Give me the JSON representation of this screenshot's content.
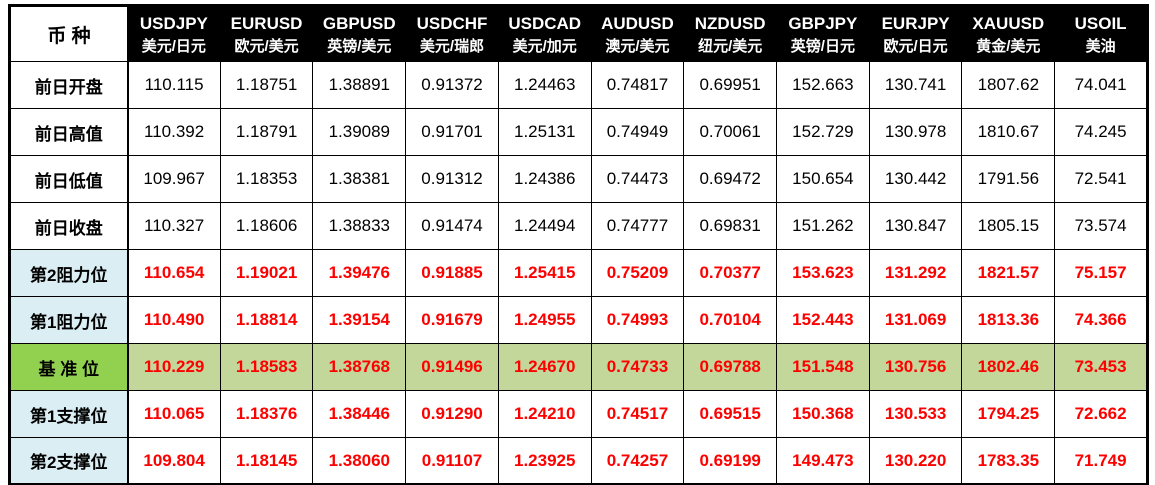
{
  "table": {
    "corner_label": "币 种",
    "columns": [
      {
        "code": "USDJPY",
        "name": "美元/日元"
      },
      {
        "code": "EURUSD",
        "name": "欧元/美元"
      },
      {
        "code": "GBPUSD",
        "name": "英镑/美元"
      },
      {
        "code": "USDCHF",
        "name": "美元/瑞郎"
      },
      {
        "code": "USDCAD",
        "name": "美元/加元"
      },
      {
        "code": "AUDUSD",
        "name": "澳元/美元"
      },
      {
        "code": "NZDUSD",
        "name": "纽元/美元"
      },
      {
        "code": "GBPJPY",
        "name": "英镑/日元"
      },
      {
        "code": "EURJPY",
        "name": "欧元/日元"
      },
      {
        "code": "XAUUSD",
        "name": "黄金/美元"
      },
      {
        "code": "USOIL",
        "name": "美油"
      }
    ],
    "rows": [
      {
        "label": "前日开盘",
        "type": "plain",
        "values": [
          "110.115",
          "1.18751",
          "1.38891",
          "0.91372",
          "1.24463",
          "0.74817",
          "0.69951",
          "152.663",
          "130.741",
          "1807.62",
          "74.041"
        ]
      },
      {
        "label": "前日高值",
        "type": "plain",
        "values": [
          "110.392",
          "1.18791",
          "1.39089",
          "0.91701",
          "1.25131",
          "0.74949",
          "0.70061",
          "152.729",
          "130.978",
          "1810.67",
          "74.245"
        ]
      },
      {
        "label": "前日低值",
        "type": "plain",
        "values": [
          "109.967",
          "1.18353",
          "1.38381",
          "0.91312",
          "1.24386",
          "0.74473",
          "0.69472",
          "150.654",
          "130.442",
          "1791.56",
          "72.541"
        ]
      },
      {
        "label": "前日收盘",
        "type": "plain",
        "values": [
          "110.327",
          "1.18606",
          "1.38833",
          "0.91474",
          "1.24494",
          "0.74777",
          "0.69831",
          "151.262",
          "130.847",
          "1805.15",
          "73.574"
        ]
      },
      {
        "label": "第2阻力位",
        "type": "resistance",
        "values": [
          "110.654",
          "1.19021",
          "1.39476",
          "0.91885",
          "1.25415",
          "0.75209",
          "0.70377",
          "153.623",
          "131.292",
          "1821.57",
          "75.157"
        ]
      },
      {
        "label": "第1阻力位",
        "type": "resistance",
        "values": [
          "110.490",
          "1.18814",
          "1.39154",
          "0.91679",
          "1.24955",
          "0.74993",
          "0.70104",
          "152.443",
          "131.069",
          "1813.36",
          "74.366"
        ]
      },
      {
        "label": "基 准 位",
        "type": "pivot",
        "values": [
          "110.229",
          "1.18583",
          "1.38768",
          "0.91496",
          "1.24670",
          "0.74733",
          "0.69788",
          "151.548",
          "130.756",
          "1802.46",
          "73.453"
        ]
      },
      {
        "label": "第1支撑位",
        "type": "support",
        "values": [
          "110.065",
          "1.18376",
          "1.38446",
          "0.91290",
          "1.24210",
          "0.74517",
          "0.69515",
          "150.368",
          "130.533",
          "1794.25",
          "72.662"
        ]
      },
      {
        "label": "第2支撑位",
        "type": "support",
        "values": [
          "109.804",
          "1.18145",
          "1.38060",
          "0.91107",
          "1.23925",
          "0.74257",
          "0.69199",
          "149.473",
          "130.220",
          "1783.35",
          "71.749"
        ]
      }
    ],
    "colors": {
      "header_bg": "#000000",
      "header_text": "#ffffff",
      "corner_bg": "#ffffff",
      "label_blue_bg": "#daeef3",
      "pivot_label_bg": "#92d050",
      "pivot_row_bg": "#c4d79b",
      "value_red": "#ff0000",
      "grid_line": "#000000"
    }
  }
}
